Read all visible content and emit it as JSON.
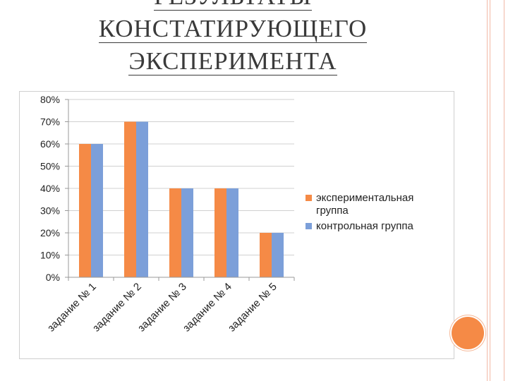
{
  "title": {
    "line1": "РЕЗУЛЬТАТЫ",
    "line2": "КОНСТАТИРУЮЩЕГО",
    "line3": "ЭКСПЕРИМЕНТА"
  },
  "colors": {
    "series1": "#f58a46",
    "series2": "#7c9fd9",
    "accent_circle": "#f58a46",
    "border": "#f2b9a6"
  },
  "chart_data": {
    "type": "bar",
    "categories": [
      "задание № 1",
      "задание № 2",
      "задание № 3",
      "задание № 4",
      "задание № 5"
    ],
    "series": [
      {
        "name": "экспериментальная группа",
        "values": [
          60,
          70,
          40,
          40,
          20
        ]
      },
      {
        "name": "контрольная группа",
        "values": [
          60,
          70,
          40,
          40,
          20
        ]
      }
    ],
    "yticks": [
      "0%",
      "10%",
      "20%",
      "30%",
      "40%",
      "50%",
      "60%",
      "70%",
      "80%"
    ],
    "ylim": [
      0,
      80
    ],
    "grid": true,
    "legend_position": "right"
  },
  "legend": {
    "items": [
      {
        "line1": "экспериментальная",
        "line2": "группа"
      },
      {
        "line1": "контрольная группа",
        "line2": ""
      }
    ]
  }
}
